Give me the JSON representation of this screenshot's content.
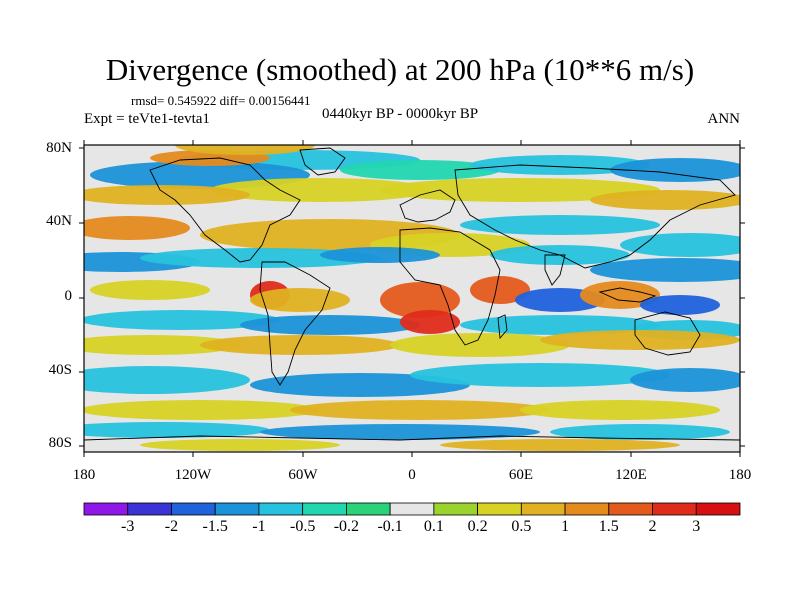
{
  "title": "Divergence (smoothed) at 200 hPa (10**6 m/s)",
  "stats": "rmsd= 0.545922 diff= 0.00156441",
  "experiment": "Expt = teVte1-tevta1",
  "period": "0440kyr BP - 0000kyr BP",
  "season": "ANN",
  "lat_labels": [
    "80N",
    "40N",
    "0",
    "40S",
    "80S"
  ],
  "lon_labels": [
    "180",
    "120W",
    "60W",
    "0",
    "60E",
    "120E",
    "180"
  ],
  "colorbar": {
    "labels": [
      "-3",
      "-2",
      "-1.5",
      "-1",
      "-0.5",
      "-0.2",
      "-0.1",
      "0.1",
      "0.2",
      "0.5",
      "1",
      "1.5",
      "2",
      "3"
    ],
    "colors": [
      "#8f17e8",
      "#3a33d6",
      "#1f62dc",
      "#1b93d8",
      "#27c2dd",
      "#22d6b0",
      "#2ad37a",
      "#e6e6e6",
      "#9ad32d",
      "#d7d224",
      "#e0b221",
      "#e58a1d",
      "#e45a1c",
      "#e02b1a",
      "#d80f10"
    ]
  },
  "colors": {
    "land_outline": "#000000",
    "background": "#ffffff"
  }
}
